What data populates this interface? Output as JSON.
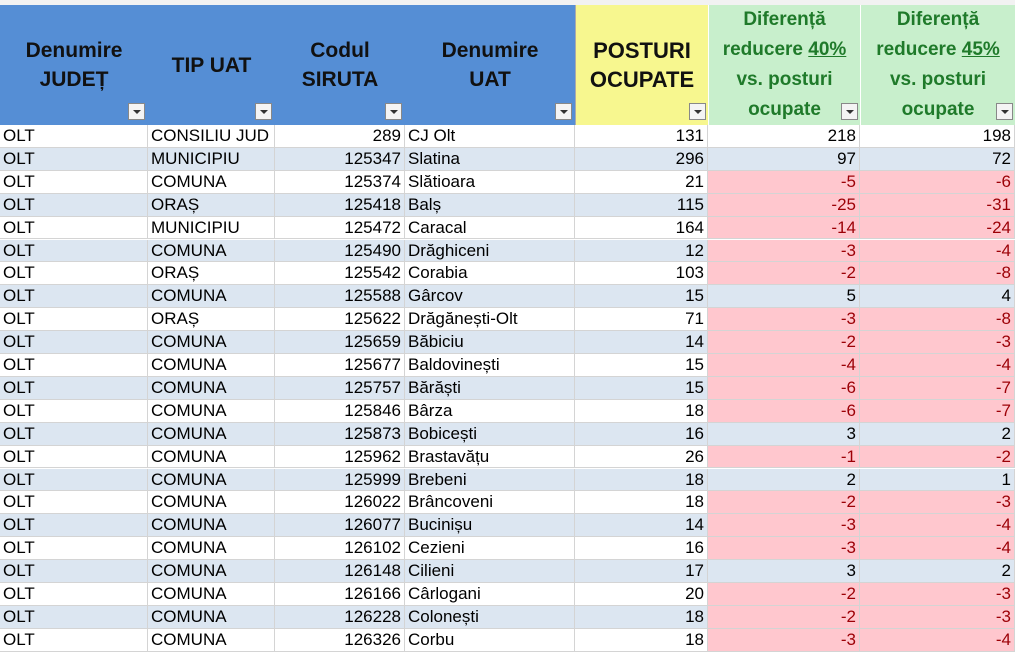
{
  "header": [
    [
      "Denumire",
      "JUDEȚ"
    ],
    [
      "TIP UAT"
    ],
    [
      "Codul",
      "SIRUTA"
    ],
    [
      "Denumire",
      "UAT"
    ],
    [
      "POSTURI",
      "OCUPATE"
    ],
    {
      "title": "Diferență",
      "prefix": "reducere",
      "percent": "40%",
      "line3": "vs. posturi",
      "line4": "ocupate"
    },
    {
      "title": "Diferență",
      "prefix": "reducere",
      "percent": "45%",
      "line3": "vs. posturi",
      "line4": "ocupate"
    }
  ],
  "rows": [
    [
      "OLT",
      "CONSILIU JUD",
      289,
      "CJ Olt",
      131,
      218,
      198
    ],
    [
      "OLT",
      "MUNICIPIU",
      125347,
      "Slatina",
      296,
      97,
      72
    ],
    [
      "OLT",
      "COMUNA",
      125374,
      "Slătioara",
      21,
      -5,
      -6
    ],
    [
      "OLT",
      "ORAȘ",
      125418,
      "Balș",
      115,
      -25,
      -31
    ],
    [
      "OLT",
      "MUNICIPIU",
      125472,
      "Caracal",
      164,
      -14,
      -24
    ],
    [
      "OLT",
      "COMUNA",
      125490,
      "Drăghiceni",
      12,
      -3,
      -4
    ],
    [
      "OLT",
      "ORAȘ",
      125542,
      "Corabia",
      103,
      -2,
      -8
    ],
    [
      "OLT",
      "COMUNA",
      125588,
      "Gârcov",
      15,
      5,
      4
    ],
    [
      "OLT",
      "ORAȘ",
      125622,
      "Drăgănești-Olt",
      71,
      -3,
      -8
    ],
    [
      "OLT",
      "COMUNA",
      125659,
      "Băbiciu",
      14,
      -2,
      -3
    ],
    [
      "OLT",
      "COMUNA",
      125677,
      "Baldovinești",
      15,
      -4,
      -4
    ],
    [
      "OLT",
      "COMUNA",
      125757,
      "Bărăști",
      15,
      -6,
      -7
    ],
    [
      "OLT",
      "COMUNA",
      125846,
      "Bârza",
      18,
      -6,
      -7
    ],
    [
      "OLT",
      "COMUNA",
      125873,
      "Bobicești",
      16,
      3,
      2
    ],
    [
      "OLT",
      "COMUNA",
      125962,
      "Brastavățu",
      26,
      -1,
      -2
    ],
    [
      "OLT",
      "COMUNA",
      125999,
      "Brebeni",
      18,
      2,
      1
    ],
    [
      "OLT",
      "COMUNA",
      126022,
      "Brâncoveni",
      18,
      -2,
      -3
    ],
    [
      "OLT",
      "COMUNA",
      126077,
      "Bucinișu",
      14,
      -3,
      -4
    ],
    [
      "OLT",
      "COMUNA",
      126102,
      "Cezieni",
      16,
      -3,
      -4
    ],
    [
      "OLT",
      "COMUNA",
      126148,
      "Cilieni",
      17,
      3,
      2
    ],
    [
      "OLT",
      "COMUNA",
      126166,
      "Cârlogani",
      20,
      -2,
      -3
    ],
    [
      "OLT",
      "COMUNA",
      126228,
      "Colonești",
      18,
      -2,
      -3
    ],
    [
      "OLT",
      "COMUNA",
      126326,
      "Corbu",
      18,
      -3,
      -4
    ]
  ]
}
